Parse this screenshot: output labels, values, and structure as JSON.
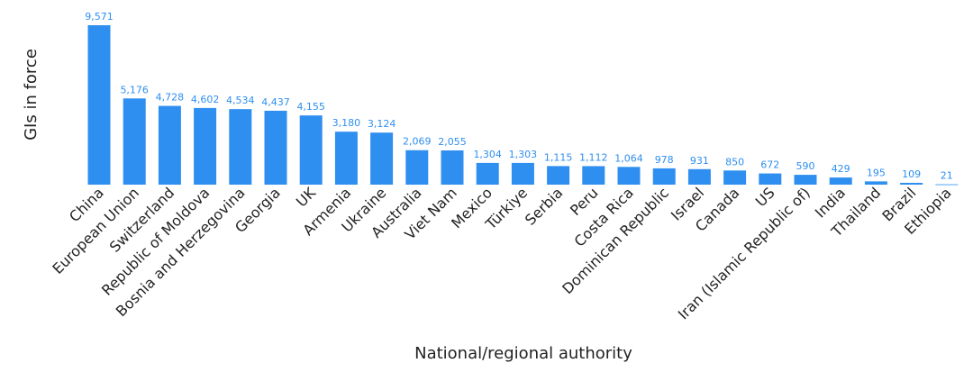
{
  "chart_data": {
    "type": "bar",
    "title": "",
    "xlabel": "National/regional authority",
    "ylabel": "GIs in force",
    "ylim": [
      0,
      9571
    ],
    "grid": false,
    "bar_color": "#2e8ff0",
    "label_color": "#2e8ff0",
    "categories": [
      "China",
      "European Union",
      "Switzerland",
      "Republic of Moldova",
      "Bosnia and Herzegovina",
      "Georgia",
      "UK",
      "Armenia",
      "Ukraine",
      "Australia",
      "Viet Nam",
      "Mexico",
      "Türkiye",
      "Serbia",
      "Peru",
      "Costa Rica",
      "Dominican Republic",
      "Israel",
      "Canada",
      "US",
      "Iran (Islamic Republic of)",
      "India",
      "Thailand",
      "Brazil",
      "Ethiopia"
    ],
    "values": [
      9571,
      5176,
      4728,
      4602,
      4534,
      4437,
      4155,
      3180,
      3124,
      2069,
      2055,
      1304,
      1303,
      1115,
      1112,
      1064,
      978,
      931,
      850,
      672,
      590,
      429,
      195,
      109,
      21
    ],
    "value_labels": [
      "9,571",
      "5,176",
      "4,728",
      "4,602",
      "4,534",
      "4,437",
      "4,155",
      "3,180",
      "3,124",
      "2,069",
      "2,055",
      "1,304",
      "1,303",
      "1,115",
      "1,112",
      "1,064",
      "978",
      "931",
      "850",
      "672",
      "590",
      "429",
      "195",
      "109",
      "21"
    ]
  }
}
